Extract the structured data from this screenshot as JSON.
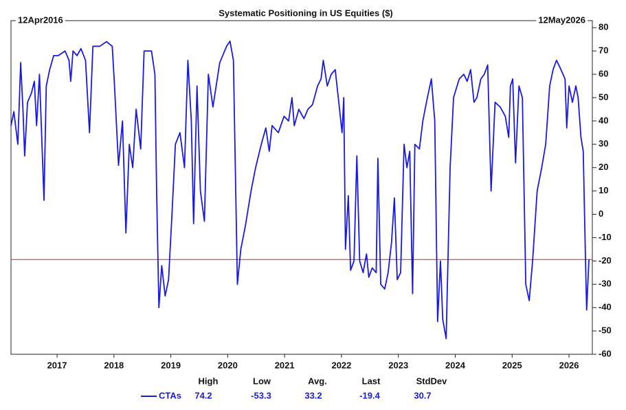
{
  "chart_data": {
    "type": "line",
    "title": "Systematic Positioning in US Equities ($)",
    "start_label": "12Apr2016",
    "end_label": "12May2026",
    "x": [
      2016.19,
      2016.24,
      2016.31,
      2016.36,
      2016.4,
      2016.43,
      2016.48,
      2016.55,
      2016.6,
      2016.64,
      2016.69,
      2016.72,
      2016.77,
      2016.81,
      2016.87,
      2016.94,
      2017.02,
      2017.14,
      2017.21,
      2017.24,
      2017.28,
      2017.35,
      2017.42,
      2017.5,
      2017.57,
      2017.63,
      2017.75,
      2017.87,
      2017.97,
      2018.01,
      2018.08,
      2018.15,
      2018.21,
      2018.27,
      2018.33,
      2018.39,
      2018.47,
      2018.53,
      2018.66,
      2018.72,
      2018.75,
      2018.79,
      2018.84,
      2018.9,
      2018.96,
      2019.02,
      2019.08,
      2019.16,
      2019.24,
      2019.3,
      2019.36,
      2019.4,
      2019.46,
      2019.52,
      2019.59,
      2019.66,
      2019.74,
      2019.86,
      2019.98,
      2020.04,
      2020.1,
      2020.17,
      2020.23,
      2020.31,
      2020.41,
      2020.49,
      2020.59,
      2020.67,
      2020.73,
      2020.78,
      2020.89,
      2020.99,
      2021.07,
      2021.13,
      2021.17,
      2021.25,
      2021.34,
      2021.41,
      2021.49,
      2021.58,
      2021.64,
      2021.68,
      2021.75,
      2021.82,
      2021.89,
      2021.97,
      2022.01,
      2022.04,
      2022.07,
      2022.12,
      2022.16,
      2022.22,
      2022.27,
      2022.32,
      2022.38,
      2022.44,
      2022.48,
      2022.54,
      2022.61,
      2022.64,
      2022.69,
      2022.76,
      2022.82,
      2022.88,
      2022.93,
      2022.98,
      2023.04,
      2023.1,
      2023.15,
      2023.2,
      2023.25,
      2023.29,
      2023.37,
      2023.43,
      2023.51,
      2023.58,
      2023.64,
      2023.69,
      2023.74,
      2023.78,
      2023.84,
      2023.91,
      2023.97,
      2024.07,
      2024.15,
      2024.21,
      2024.27,
      2024.33,
      2024.38,
      2024.45,
      2024.51,
      2024.57,
      2024.63,
      2024.7,
      2024.79,
      2024.88,
      2024.94,
      2024.97,
      2025.01,
      2025.06,
      2025.12,
      2025.18,
      2025.24,
      2025.3,
      2025.36,
      2025.44,
      2025.52,
      2025.59,
      2025.66,
      2025.72,
      2025.78,
      2025.84,
      2025.93,
      2025.96,
      2026.0,
      2026.06,
      2026.12,
      2026.16,
      2026.21,
      2026.25,
      2026.29,
      2026.31,
      2026.35
    ],
    "series": [
      {
        "name": "CTAs",
        "color": "#1a1adc",
        "values": [
          38,
          44,
          30,
          65,
          45,
          25,
          48,
          52,
          57,
          38,
          60,
          40,
          6,
          55,
          62,
          68,
          68,
          70,
          66,
          57,
          70,
          68,
          71,
          66,
          35,
          72,
          72,
          74,
          72,
          55,
          21,
          40,
          -8,
          30,
          20,
          45,
          28,
          70,
          70,
          60,
          10,
          -40,
          -22,
          -35,
          -28,
          0,
          30,
          35,
          20,
          66,
          40,
          -4,
          55,
          10,
          -3,
          60,
          46,
          65,
          72,
          74.2,
          66,
          -30,
          -15,
          -5,
          10,
          20,
          30,
          37,
          27,
          38,
          35,
          42,
          40,
          50,
          38,
          45,
          41,
          45,
          47,
          55,
          58,
          66,
          55,
          60,
          62,
          44,
          35,
          50,
          -15,
          8,
          -24,
          -20,
          25,
          -20,
          -25,
          -17,
          -27,
          -23,
          -25,
          24,
          -30,
          -32,
          -25,
          -12,
          7,
          -28,
          -25,
          30,
          20,
          27,
          -34,
          30,
          28,
          40,
          50,
          58,
          40,
          -46,
          -20,
          -45,
          -53.3,
          20,
          50,
          58,
          60,
          57,
          62,
          48,
          50,
          58,
          60,
          64,
          10,
          48,
          46,
          42,
          33,
          55,
          58,
          22,
          55,
          50,
          -30,
          -37,
          -20,
          10,
          20,
          30,
          55,
          62,
          66,
          63,
          58,
          37,
          55,
          48,
          55,
          50,
          33,
          27,
          -20,
          -41,
          -19.4
        ]
      }
    ],
    "reference_line": {
      "value": -19.4,
      "color": "#cc2222"
    },
    "xlim": [
      2016.19,
      2026.41
    ],
    "xticks": [
      2017,
      2018,
      2019,
      2020,
      2021,
      2022,
      2023,
      2024,
      2025,
      2026
    ],
    "ylim": [
      -60,
      83
    ],
    "yticks": [
      -60,
      -50,
      -40,
      -30,
      -20,
      -10,
      0,
      10,
      20,
      30,
      40,
      50,
      60,
      70,
      80
    ],
    "stats": {
      "headers": [
        "High",
        "Low",
        "Avg.",
        "Last",
        "StdDev"
      ],
      "values": [
        74.2,
        -53.3,
        33.2,
        -19.4,
        30.7
      ]
    }
  }
}
